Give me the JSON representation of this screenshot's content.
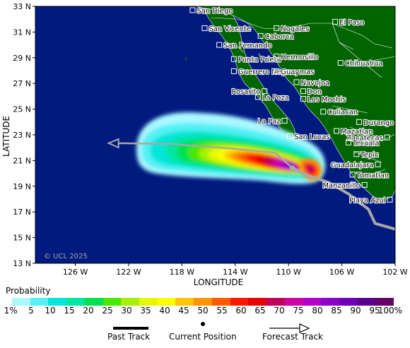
{
  "axes": {
    "ylabel": "LATITUDE",
    "xlabel": "LONGITUDE",
    "lat_ticks": [
      "33 N",
      "31 N",
      "29 N",
      "27 N",
      "25 N",
      "23 N",
      "21 N",
      "19 N",
      "17 N",
      "15 N",
      "13 N"
    ],
    "lon_ticks": [
      "126 W",
      "122 W",
      "118 W",
      "114 W",
      "110 W",
      "106 W",
      "102 W"
    ]
  },
  "copyright": "© UCL 2025",
  "cities": [
    {
      "name": "San Diego",
      "lon": -117.2,
      "lat": 32.7,
      "side": "right"
    },
    {
      "name": "San Vicente",
      "lon": -116.3,
      "lat": 31.3,
      "side": "right"
    },
    {
      "name": "San Fernando",
      "lon": -115.2,
      "lat": 30.0,
      "side": "right"
    },
    {
      "name": "Punta Prieta",
      "lon": -114.1,
      "lat": 28.9,
      "side": "right"
    },
    {
      "name": "Guerrero Negro",
      "lon": -114.1,
      "lat": 27.95,
      "side": "right"
    },
    {
      "name": "Caborca",
      "lon": -112.1,
      "lat": 30.7,
      "side": "right"
    },
    {
      "name": "Nogales",
      "lon": -110.9,
      "lat": 31.3,
      "side": "right"
    },
    {
      "name": "Hermosillo",
      "lon": -110.9,
      "lat": 29.1,
      "side": "right"
    },
    {
      "name": "Guaymas",
      "lon": -110.9,
      "lat": 27.95,
      "side": "right"
    },
    {
      "name": "Navojoa",
      "lon": -109.4,
      "lat": 27.1,
      "side": "right"
    },
    {
      "name": "Rosarito",
      "lon": -111.8,
      "lat": 26.4,
      "side": "left"
    },
    {
      "name": "La Poza",
      "lon": -112.3,
      "lat": 25.95,
      "side": "right"
    },
    {
      "name": "Don",
      "lon": -108.9,
      "lat": 26.4,
      "side": "right"
    },
    {
      "name": "Los Mochis",
      "lon": -108.9,
      "lat": 25.8,
      "side": "right"
    },
    {
      "name": "El Paso",
      "lon": -106.5,
      "lat": 31.8,
      "side": "right"
    },
    {
      "name": "Chihuahua",
      "lon": -106.1,
      "lat": 28.6,
      "side": "right"
    },
    {
      "name": "Culiacan",
      "lon": -107.4,
      "lat": 24.8,
      "side": "right"
    },
    {
      "name": "La Paz",
      "lon": -110.3,
      "lat": 24.1,
      "side": "left"
    },
    {
      "name": "San Lucas",
      "lon": -109.9,
      "lat": 22.9,
      "side": "right"
    },
    {
      "name": "Durango",
      "lon": -104.7,
      "lat": 24.0,
      "side": "right"
    },
    {
      "name": "Mazatlan",
      "lon": -106.4,
      "lat": 23.3,
      "side": "right"
    },
    {
      "name": "Zacatecas",
      "lon": -102.6,
      "lat": 22.8,
      "side": "left"
    },
    {
      "name": "Tecuala",
      "lon": -105.5,
      "lat": 22.4,
      "side": "right"
    },
    {
      "name": "Tepic",
      "lon": -104.9,
      "lat": 21.5,
      "side": "right"
    },
    {
      "name": "Guadalajara",
      "lon": -103.3,
      "lat": 20.7,
      "side": "left"
    },
    {
      "name": "Tomatlan",
      "lon": -105.2,
      "lat": 19.9,
      "side": "right"
    },
    {
      "name": "Manzanillo",
      "lon": -104.3,
      "lat": 19.1,
      "side": "left"
    },
    {
      "name": "Playa Azul",
      "lon": -102.4,
      "lat": 17.95,
      "side": "left"
    }
  ],
  "storm": {
    "current_position": {
      "lon": -109.7,
      "lat": 20.4
    },
    "past_track": [
      [
        -109.7,
        20.4
      ],
      [
        -108.5,
        19.8
      ],
      [
        -107.0,
        19.3
      ],
      [
        -105.5,
        18.4
      ],
      [
        -104.0,
        17.2
      ],
      [
        -103.5,
        16.1
      ],
      [
        -101.8,
        15.6
      ]
    ],
    "forecast_track": [
      [
        -109.7,
        20.4
      ],
      [
        -111.0,
        21.6
      ],
      [
        -114.5,
        21.95
      ],
      [
        -119.0,
        22.3
      ],
      [
        -123.5,
        22.35
      ]
    ]
  },
  "legend": {
    "title": "Probability",
    "labels": [
      "1%",
      "5",
      "10",
      "15",
      "20",
      "25",
      "30",
      "35",
      "40",
      "45",
      "50",
      "55",
      "60",
      "65",
      "70",
      "75",
      "80",
      "85",
      "90",
      "95",
      "100%"
    ],
    "colors": [
      "#aaf8ff",
      "#55f0f5",
      "#00e6d8",
      "#00e6a0",
      "#00e050",
      "#4ae800",
      "#a8f000",
      "#e6f800",
      "#ffff00",
      "#ffc400",
      "#ff9400",
      "#ff5a00",
      "#ff1800",
      "#e60000",
      "#c0005a",
      "#d000a8",
      "#b400c8",
      "#8c00c8",
      "#7000b8",
      "#5a008e",
      "#640064"
    ],
    "past_track_label": "Past Track",
    "current_position_label": "Current Position",
    "forecast_track_label": "Forecast Track"
  },
  "colors": {
    "ocean": "#001a80",
    "land": "#006400",
    "track": "#a8a8a8"
  }
}
